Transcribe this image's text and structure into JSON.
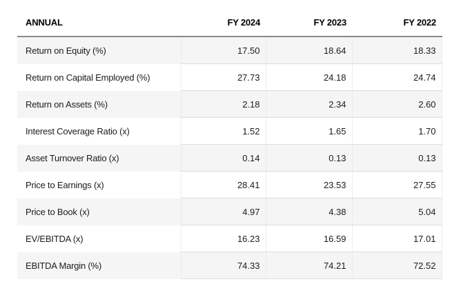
{
  "table": {
    "header": {
      "label": "ANNUAL",
      "columns": [
        "FY 2024",
        "FY 2023",
        "FY 2022"
      ]
    },
    "rows": [
      {
        "label": "Return on Equity (%)",
        "values": [
          "17.50",
          "18.64",
          "18.33"
        ]
      },
      {
        "label": "Return on Capital Employed (%)",
        "values": [
          "27.73",
          "24.18",
          "24.74"
        ]
      },
      {
        "label": "Return on Assets (%)",
        "values": [
          "2.18",
          "2.34",
          "2.60"
        ]
      },
      {
        "label": "Interest Coverage Ratio (x)",
        "values": [
          "1.52",
          "1.65",
          "1.70"
        ]
      },
      {
        "label": "Asset Turnover Ratio (x)",
        "values": [
          "0.14",
          "0.13",
          "0.13"
        ]
      },
      {
        "label": "Price to Earnings (x)",
        "values": [
          "28.41",
          "23.53",
          "27.55"
        ]
      },
      {
        "label": "Price to Book (x)",
        "values": [
          "4.97",
          "4.38",
          "5.04"
        ]
      },
      {
        "label": "EV/EBITDA (x)",
        "values": [
          "16.23",
          "16.59",
          "17.01"
        ]
      },
      {
        "label": "EBITDA Margin (%)",
        "values": [
          "74.33",
          "74.21",
          "72.52"
        ]
      }
    ]
  },
  "colors": {
    "alt_row_bg": "#f5f5f5",
    "header_rule": "#8a8a8a",
    "row_rule": "#dcdcdc",
    "column_hairline": "#ececec",
    "text": "#1b1b1b"
  },
  "chart_data": {
    "type": "table",
    "title": "ANNUAL",
    "columns": [
      "ANNUAL",
      "FY 2024",
      "FY 2023",
      "FY 2022"
    ],
    "rows": [
      [
        "Return on Equity (%)",
        17.5,
        18.64,
        18.33
      ],
      [
        "Return on Capital Employed (%)",
        27.73,
        24.18,
        24.74
      ],
      [
        "Return on Assets (%)",
        2.18,
        2.34,
        2.6
      ],
      [
        "Interest Coverage Ratio (x)",
        1.52,
        1.65,
        1.7
      ],
      [
        "Asset Turnover Ratio (x)",
        0.14,
        0.13,
        0.13
      ],
      [
        "Price to Earnings (x)",
        28.41,
        23.53,
        27.55
      ],
      [
        "Price to Book (x)",
        4.97,
        4.38,
        5.04
      ],
      [
        "EV/EBITDA (x)",
        16.23,
        16.59,
        17.01
      ],
      [
        "EBITDA Margin (%)",
        74.33,
        74.21,
        72.52
      ]
    ]
  }
}
